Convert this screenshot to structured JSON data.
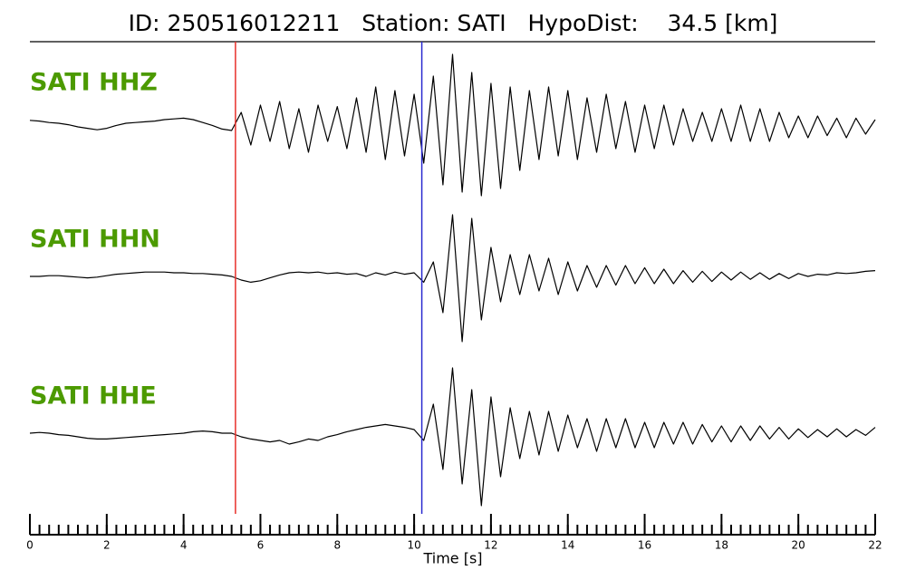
{
  "chart_data": {
    "type": "seismogram",
    "title": "ID: 250516012211   Station: SATI   HypoDist:    34.5 [km]",
    "xlabel": "Time [s]",
    "xlim": [
      0,
      22
    ],
    "xticks": [
      0,
      2,
      4,
      6,
      8,
      10,
      12,
      14,
      16,
      18,
      20,
      22
    ],
    "xminor_step": 0.25,
    "ylim": [
      -1,
      1
    ],
    "label_color": "#4c9a00",
    "picks": [
      {
        "value": 5.35,
        "color": "#e8302a"
      },
      {
        "value": 10.2,
        "color": "#2a2ad0"
      }
    ],
    "x": [
      0,
      0.25,
      0.5,
      0.75,
      1,
      1.25,
      1.5,
      1.75,
      2,
      2.25,
      2.5,
      2.75,
      3,
      3.25,
      3.5,
      3.75,
      4,
      4.25,
      4.5,
      4.75,
      5,
      5.25,
      5.5,
      5.75,
      6,
      6.25,
      6.5,
      6.75,
      7,
      7.25,
      7.5,
      7.75,
      8,
      8.25,
      8.5,
      8.75,
      9,
      9.25,
      9.5,
      9.75,
      10,
      10.25,
      10.5,
      10.75,
      11,
      11.25,
      11.5,
      11.75,
      12,
      12.25,
      12.5,
      12.75,
      13,
      13.25,
      13.5,
      13.75,
      14,
      14.25,
      14.5,
      14.75,
      15,
      15.25,
      15.5,
      15.75,
      16,
      16.25,
      16.5,
      16.75,
      17,
      17.25,
      17.5,
      17.75,
      18,
      18.25,
      18.5,
      18.75,
      19,
      19.25,
      19.5,
      19.75,
      20,
      20.25,
      20.5,
      20.75,
      21,
      21.25,
      21.5,
      21.75,
      22
    ],
    "series": [
      {
        "name": "SATI HHZ",
        "color": "#000000",
        "values": [
          0.09,
          0.08,
          0.06,
          0.05,
          0.03,
          0.0,
          -0.02,
          -0.04,
          -0.02,
          0.02,
          0.05,
          0.06,
          0.07,
          0.08,
          0.1,
          0.11,
          0.12,
          0.1,
          0.06,
          0.02,
          -0.03,
          -0.05,
          0.2,
          -0.25,
          0.3,
          -0.2,
          0.35,
          -0.3,
          0.25,
          -0.35,
          0.3,
          -0.2,
          0.28,
          -0.3,
          0.4,
          -0.35,
          0.55,
          -0.45,
          0.5,
          -0.4,
          0.45,
          -0.5,
          0.7,
          -0.8,
          1.0,
          -0.9,
          0.75,
          -0.95,
          0.6,
          -0.85,
          0.55,
          -0.6,
          0.5,
          -0.45,
          0.55,
          -0.4,
          0.5,
          -0.45,
          0.4,
          -0.35,
          0.45,
          -0.3,
          0.35,
          -0.35,
          0.3,
          -0.3,
          0.3,
          -0.25,
          0.25,
          -0.2,
          0.2,
          -0.2,
          0.25,
          -0.2,
          0.3,
          -0.2,
          0.25,
          -0.2,
          0.2,
          -0.15,
          0.15,
          -0.15,
          0.15,
          -0.12,
          0.12,
          -0.15,
          0.12,
          -0.1,
          0.1
        ]
      },
      {
        "name": "SATI HHN",
        "color": "#000000",
        "values": [
          0,
          0,
          0.01,
          0.01,
          0.0,
          -0.01,
          -0.02,
          -0.01,
          0.01,
          0.03,
          0.04,
          0.05,
          0.06,
          0.06,
          0.06,
          0.05,
          0.05,
          0.04,
          0.04,
          0.03,
          0.02,
          0.0,
          -0.05,
          -0.08,
          -0.06,
          -0.02,
          0.02,
          0.05,
          0.06,
          0.05,
          0.06,
          0.04,
          0.05,
          0.03,
          0.04,
          0.0,
          0.05,
          0.02,
          0.06,
          0.03,
          0.05,
          -0.08,
          0.2,
          -0.5,
          0.85,
          -0.9,
          0.8,
          -0.6,
          0.4,
          -0.35,
          0.3,
          -0.25,
          0.3,
          -0.2,
          0.25,
          -0.25,
          0.2,
          -0.2,
          0.15,
          -0.15,
          0.15,
          -0.12,
          0.15,
          -0.1,
          0.12,
          -0.1,
          0.1,
          -0.1,
          0.08,
          -0.08,
          0.07,
          -0.07,
          0.06,
          -0.05,
          0.06,
          -0.04,
          0.05,
          -0.04,
          0.04,
          -0.03,
          0.04,
          0.0,
          0.03,
          0.02,
          0.05,
          0.04,
          0.05,
          0.07,
          0.08
        ]
      },
      {
        "name": "SATI HHE",
        "color": "#000000",
        "values": [
          0.0,
          0.01,
          0.0,
          -0.02,
          -0.03,
          -0.05,
          -0.07,
          -0.08,
          -0.08,
          -0.07,
          -0.06,
          -0.05,
          -0.04,
          -0.03,
          -0.02,
          -0.01,
          0.0,
          0.02,
          0.03,
          0.02,
          0.0,
          0.0,
          -0.05,
          -0.08,
          -0.1,
          -0.12,
          -0.1,
          -0.15,
          -0.12,
          -0.08,
          -0.1,
          -0.05,
          -0.02,
          0.02,
          0.05,
          0.08,
          0.1,
          0.12,
          0.1,
          0.08,
          0.05,
          -0.1,
          0.4,
          -0.5,
          0.9,
          -0.7,
          0.6,
          -1.0,
          0.5,
          -0.6,
          0.35,
          -0.35,
          0.3,
          -0.3,
          0.3,
          -0.25,
          0.25,
          -0.2,
          0.2,
          -0.25,
          0.2,
          -0.2,
          0.2,
          -0.2,
          0.15,
          -0.2,
          0.15,
          -0.15,
          0.15,
          -0.15,
          0.12,
          -0.12,
          0.1,
          -0.12,
          0.1,
          -0.1,
          0.1,
          -0.08,
          0.08,
          -0.08,
          0.06,
          -0.06,
          0.05,
          -0.05,
          0.06,
          -0.05,
          0.05,
          -0.03,
          0.08
        ]
      }
    ]
  }
}
